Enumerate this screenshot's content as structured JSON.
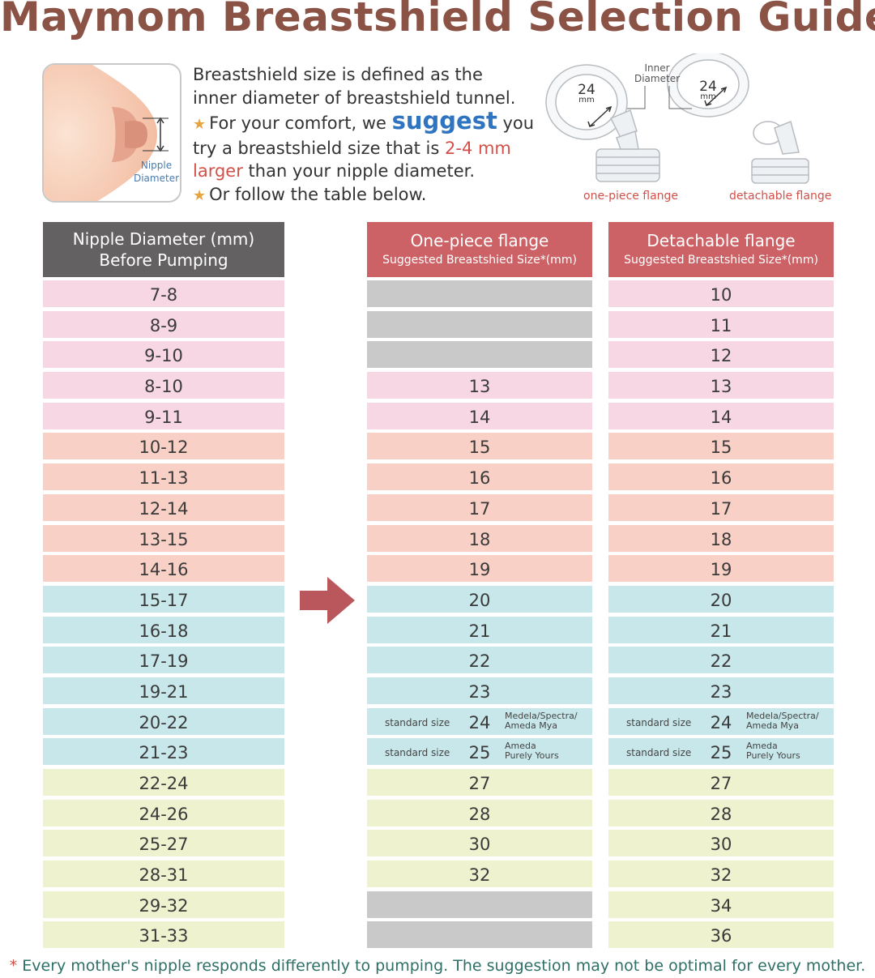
{
  "title": "Maymom Breastshield Selection Guide",
  "nipple_illustration": {
    "label_line1": "Nipple",
    "label_line2": "Diameter"
  },
  "intro": {
    "line1": "Breastshield size is defined as the",
    "line2": "inner diameter of breastshield tunnel.",
    "line3_a": "For your comfort, we ",
    "line3_suggest": "suggest",
    "line3_b": " you",
    "line4_a": "try a breastshield size that is ",
    "line4_red": "2-4 mm",
    "line5_red": "larger",
    "line5_b": " than your nipple diameter.",
    "line6": "Or follow the table below."
  },
  "flanges": {
    "inner_label_1": "Inner",
    "inner_label_2": "Diameter",
    "one_piece_size": "24",
    "one_piece_unit": "mm",
    "detachable_size": "24",
    "detachable_unit": "mm",
    "one_piece_caption": "one-piece flange",
    "detachable_caption": "detachable flange"
  },
  "table": {
    "header_left_1": "Nipple Diameter (mm)",
    "header_left_2": "Before Pumping",
    "header_one_1": "One-piece flange",
    "header_one_2": "Suggested Breastshied Size*(mm)",
    "header_det_1": "Detachable flange",
    "header_det_2": "Suggested Breastshied Size*(mm)",
    "rows": [
      {
        "nipple": "7-8",
        "one": "",
        "det": "10",
        "color": "pink"
      },
      {
        "nipple": "8-9",
        "one": "",
        "det": "11",
        "color": "pink"
      },
      {
        "nipple": "9-10",
        "one": "",
        "det": "12",
        "color": "pink"
      },
      {
        "nipple": "8-10",
        "one": "13",
        "det": "13",
        "color": "pink"
      },
      {
        "nipple": "9-11",
        "one": "14",
        "det": "14",
        "color": "pink"
      },
      {
        "nipple": "10-12",
        "one": "15",
        "det": "15",
        "color": "peach"
      },
      {
        "nipple": "11-13",
        "one": "16",
        "det": "16",
        "color": "peach"
      },
      {
        "nipple": "12-14",
        "one": "17",
        "det": "17",
        "color": "peach"
      },
      {
        "nipple": "13-15",
        "one": "18",
        "det": "18",
        "color": "peach"
      },
      {
        "nipple": "14-16",
        "one": "19",
        "det": "19",
        "color": "peach"
      },
      {
        "nipple": "15-17",
        "one": "20",
        "det": "20",
        "color": "blue"
      },
      {
        "nipple": "16-18",
        "one": "21",
        "det": "21",
        "color": "blue"
      },
      {
        "nipple": "17-19",
        "one": "22",
        "det": "22",
        "color": "blue"
      },
      {
        "nipple": "19-21",
        "one": "23",
        "det": "23",
        "color": "blue"
      },
      {
        "nipple": "20-22",
        "one": "24",
        "det": "24",
        "color": "blue",
        "std": "standard size",
        "brand1": "Medela/Spectra/",
        "brand2": "Ameda Mya"
      },
      {
        "nipple": "21-23",
        "one": "25",
        "det": "25",
        "color": "blue",
        "std": "standard size",
        "brand1": "Ameda",
        "brand2": "Purely Yours"
      },
      {
        "nipple": "22-24",
        "one": "27",
        "det": "27",
        "color": "yellow"
      },
      {
        "nipple": "24-26",
        "one": "28",
        "det": "28",
        "color": "yellow"
      },
      {
        "nipple": "25-27",
        "one": "30",
        "det": "30",
        "color": "yellow"
      },
      {
        "nipple": "28-31",
        "one": "32",
        "det": "32",
        "color": "yellow"
      },
      {
        "nipple": "29-32",
        "one": "",
        "det": "34",
        "color": "yellow"
      },
      {
        "nipple": "31-33",
        "one": "",
        "det": "36",
        "color": "yellow"
      }
    ]
  },
  "footnote": {
    "asterisk": "*",
    "text": " Every mother's nipple responds differently to pumping. The suggestion may not be optimal for every mother."
  },
  "colors": {
    "title": "#8b5345",
    "header_grey": "#636162",
    "header_red": "#cd6266",
    "pink": "#f7d7e4",
    "peach": "#f9d0c5",
    "blue": "#c8e7ea",
    "yellow": "#eef2cf",
    "grey": "#c9c9c9",
    "arrow": "#b9575c",
    "suggest": "#2f74c1"
  }
}
